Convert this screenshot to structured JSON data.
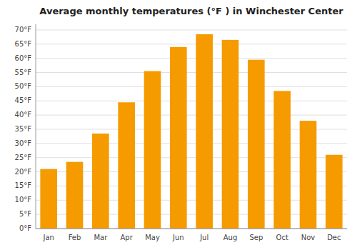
{
  "chart_data": {
    "type": "bar",
    "title": "Average monthly temperatures (°F ) in Winchester Center",
    "categories": [
      "Jan",
      "Feb",
      "Mar",
      "Apr",
      "May",
      "Jun",
      "Jul",
      "Aug",
      "Sep",
      "Oct",
      "Nov",
      "Dec"
    ],
    "values": [
      21,
      23.5,
      33.5,
      44.5,
      55.5,
      64,
      68.5,
      66.5,
      59.5,
      48.5,
      38,
      26
    ],
    "color": "#F59B00",
    "ylim": [
      0,
      72
    ],
    "yticks": [
      {
        "value": 0,
        "label": "0°F"
      },
      {
        "value": 5,
        "label": "5°F"
      },
      {
        "value": 10,
        "label": "10°F"
      },
      {
        "value": 15,
        "label": "15°F"
      },
      {
        "value": 20,
        "label": "20°F"
      },
      {
        "value": 25,
        "label": "25°F"
      },
      {
        "value": 30,
        "label": "30°F"
      },
      {
        "value": 35,
        "label": "35°F"
      },
      {
        "value": 40,
        "label": "40°F"
      },
      {
        "value": 45,
        "label": "45°F"
      },
      {
        "value": 50,
        "label": "50°F"
      },
      {
        "value": 55,
        "label": "55°F"
      },
      {
        "value": 60,
        "label": "60°F"
      },
      {
        "value": 65,
        "label": "65°F"
      },
      {
        "value": 70,
        "label": "70°F"
      }
    ],
    "grid": true
  }
}
